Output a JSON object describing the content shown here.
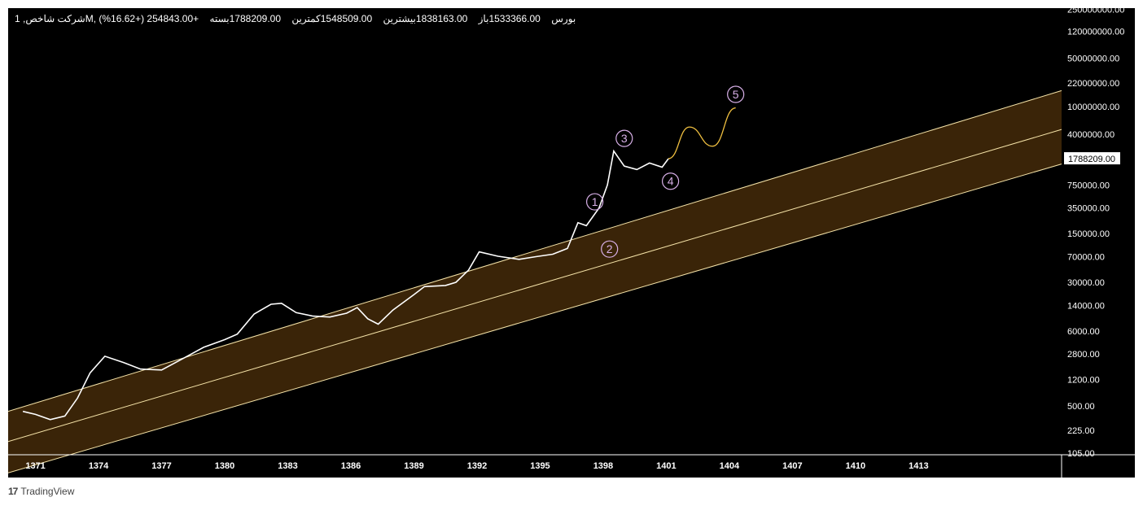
{
  "header": {
    "symbol": "شرکت شاخص, 1M, بورس",
    "open": "1533366.00باز",
    "high": "1838163.00بیشترین",
    "low": "1548509.00کمترین",
    "close": "1788209.00بسته",
    "change": "+254843.00 (+16.62%)"
  },
  "footer": {
    "logo": "17",
    "brand": "TradingView"
  },
  "colors": {
    "background": "#000000",
    "channel_fill": "#3a2408",
    "channel_line": "#f5e3a8",
    "price_line": "#ffffff",
    "projection": "#f0c040",
    "wave_label": "#d8b0e8"
  },
  "price_label": "1788209.00",
  "chart_data": {
    "type": "line",
    "y_scale": "log",
    "x_ticks": [
      "1371",
      "1374",
      "1377",
      "1380",
      "1383",
      "1386",
      "1389",
      "1392",
      "1395",
      "1398",
      "1401",
      "1404",
      "1407",
      "1410",
      "1413"
    ],
    "y_ticks": [
      "250000000.00",
      "120000000.00",
      "50000000.00",
      "22000000.00",
      "10000000.00",
      "4000000.00",
      "1788209.00",
      "750000.00",
      "350000.00",
      "150000.00",
      "70000.00",
      "30000.00",
      "14000.00",
      "6000.00",
      "2800.00",
      "1200.00",
      "500.00",
      "225.00",
      "105.00"
    ],
    "ylim": [
      100,
      260000000
    ],
    "xlim": [
      1369.7,
      1419.8
    ],
    "price_series": [
      [
        1370.4,
        420
      ],
      [
        1371.0,
        380
      ],
      [
        1371.7,
        320
      ],
      [
        1372.4,
        360
      ],
      [
        1373.0,
        650
      ],
      [
        1373.6,
        1500
      ],
      [
        1374.3,
        2600
      ],
      [
        1375.2,
        2100
      ],
      [
        1376.0,
        1700
      ],
      [
        1377.0,
        1650
      ],
      [
        1378.0,
        2400
      ],
      [
        1379.0,
        3500
      ],
      [
        1380.0,
        4500
      ],
      [
        1380.6,
        5400
      ],
      [
        1381.4,
        10500
      ],
      [
        1382.2,
        14500
      ],
      [
        1382.7,
        15000
      ],
      [
        1383.4,
        11000
      ],
      [
        1384.2,
        9800
      ],
      [
        1385.0,
        9500
      ],
      [
        1385.8,
        10800
      ],
      [
        1386.3,
        13000
      ],
      [
        1386.8,
        9000
      ],
      [
        1387.3,
        7500
      ],
      [
        1388.0,
        12000
      ],
      [
        1389.0,
        20000
      ],
      [
        1389.5,
        26000
      ],
      [
        1390.5,
        27000
      ],
      [
        1391.0,
        30000
      ],
      [
        1391.6,
        45000
      ],
      [
        1392.1,
        82000
      ],
      [
        1393.0,
        71000
      ],
      [
        1394.0,
        64000
      ],
      [
        1394.8,
        70000
      ],
      [
        1395.6,
        76000
      ],
      [
        1396.3,
        92000
      ],
      [
        1396.8,
        215000
      ],
      [
        1397.2,
        195000
      ],
      [
        1397.8,
        350000
      ],
      [
        1398.2,
        750000
      ],
      [
        1398.5,
        2300000
      ],
      [
        1399.0,
        1400000
      ],
      [
        1399.6,
        1250000
      ],
      [
        1400.2,
        1550000
      ],
      [
        1400.8,
        1350000
      ],
      [
        1401.1,
        1788209
      ]
    ],
    "projection": [
      [
        1401.1,
        1788209
      ],
      [
        1402.1,
        5100000
      ],
      [
        1403.2,
        2700000
      ],
      [
        1404.3,
        9600000
      ]
    ],
    "channel": {
      "upper": [
        [
          1369.7,
          420
        ],
        [
          1419.8,
          17000000
        ]
      ],
      "middle": [
        [
          1369.7,
          155
        ],
        [
          1419.8,
          4700000
        ]
      ],
      "lower": [
        [
          1369.7,
          55
        ],
        [
          1419.8,
          1500000
        ]
      ]
    },
    "wave_labels": [
      {
        "label": "1",
        "x": 1397.6,
        "y": 430000
      },
      {
        "label": "2",
        "x": 1398.3,
        "y": 90000
      },
      {
        "label": "3",
        "x": 1399.0,
        "y": 3500000
      },
      {
        "label": "4",
        "x": 1401.2,
        "y": 850000
      },
      {
        "label": "5",
        "x": 1404.3,
        "y": 15000000
      }
    ]
  }
}
